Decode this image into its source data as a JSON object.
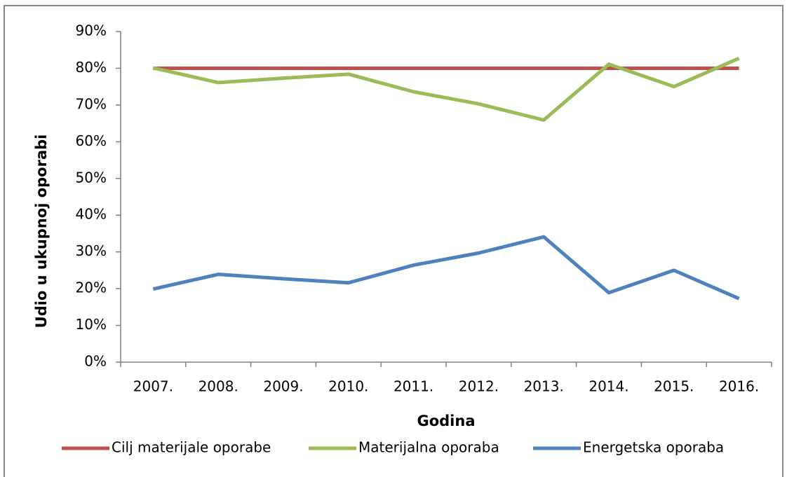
{
  "chart_data": {
    "type": "line",
    "xlabel": "Godina",
    "ylabel": "Udio u ukupnoj oporabi",
    "categories": [
      "2007.",
      "2008.",
      "2009.",
      "2010.",
      "2011.",
      "2012.",
      "2013.",
      "2014.",
      "2015.",
      "2016."
    ],
    "series": [
      {
        "name": "Cilj materijale oporabe",
        "color": "#c0504d",
        "values": [
          80,
          80,
          80,
          80,
          80,
          80,
          80,
          80,
          80,
          80
        ]
      },
      {
        "name": "Materijalna oporaba",
        "color": "#9bbb59",
        "values": [
          80.1,
          76.1,
          77.3,
          78.4,
          73.6,
          70.3,
          65.9,
          81.1,
          75,
          82.7
        ]
      },
      {
        "name": "Energetska oporaba",
        "color": "#4f81bd",
        "values": [
          19.9,
          23.9,
          22.7,
          21.6,
          26.4,
          29.7,
          34.1,
          18.9,
          25,
          17.3
        ]
      }
    ],
    "ylim": [
      0,
      90
    ],
    "yticks": [
      {
        "value": 0,
        "label": "0%"
      },
      {
        "value": 10,
        "label": "10%"
      },
      {
        "value": 20,
        "label": "20%"
      },
      {
        "value": 30,
        "label": "30%"
      },
      {
        "value": 40,
        "label": "40%"
      },
      {
        "value": 50,
        "label": "50%"
      },
      {
        "value": 60,
        "label": "60%"
      },
      {
        "value": 70,
        "label": "70%"
      },
      {
        "value": 80,
        "label": "80%"
      },
      {
        "value": 90,
        "label": "90%"
      }
    ],
    "legend": "bottom"
  }
}
